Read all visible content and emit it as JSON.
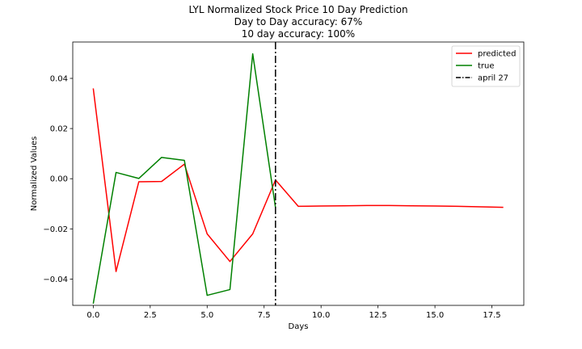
{
  "chart_data": {
    "type": "line",
    "title_lines": [
      "LYL Normalized Stock Price 10 Day Prediction",
      "Day to Day accuracy: 67%",
      "10 day accuracy: 100%"
    ],
    "xlabel": "Days",
    "ylabel": "Normalized Values",
    "xlim": [
      -0.9,
      18.9
    ],
    "ylim": [
      -0.0505,
      0.0545
    ],
    "xticks": [
      0.0,
      2.5,
      5.0,
      7.5,
      10.0,
      12.5,
      15.0,
      17.5
    ],
    "xtick_labels": [
      "0.0",
      "2.5",
      "5.0",
      "7.5",
      "10.0",
      "12.5",
      "15.0",
      "17.5"
    ],
    "yticks": [
      -0.04,
      -0.02,
      0.0,
      0.02,
      0.04
    ],
    "ytick_labels": [
      "−0.04",
      "−0.02",
      "0.00",
      "0.02",
      "0.04"
    ],
    "legend_position": "top-right",
    "series": [
      {
        "name": "predicted",
        "color": "#ff0000",
        "style": "solid",
        "x": [
          0,
          1,
          2,
          3,
          4,
          5,
          6,
          7,
          8,
          9,
          10,
          11,
          12,
          13,
          14,
          15,
          16,
          17,
          18
        ],
        "y": [
          0.036,
          -0.037,
          -0.0012,
          -0.0011,
          0.0058,
          -0.022,
          -0.033,
          -0.022,
          -0.0005,
          -0.011,
          -0.0109,
          -0.0108,
          -0.0107,
          -0.0107,
          -0.0108,
          -0.0109,
          -0.011,
          -0.0112,
          -0.0114
        ]
      },
      {
        "name": "true",
        "color": "#008000",
        "style": "solid",
        "x": [
          0,
          1,
          2,
          3,
          4,
          5,
          6,
          7,
          8
        ],
        "y": [
          -0.0498,
          0.0025,
          0.0001,
          0.0085,
          0.0073,
          -0.0465,
          -0.0442,
          0.0498,
          -0.0115
        ]
      }
    ],
    "vlines": [
      {
        "name": "april 27",
        "x": 8,
        "color": "#000000",
        "style": "dashdot"
      }
    ]
  }
}
